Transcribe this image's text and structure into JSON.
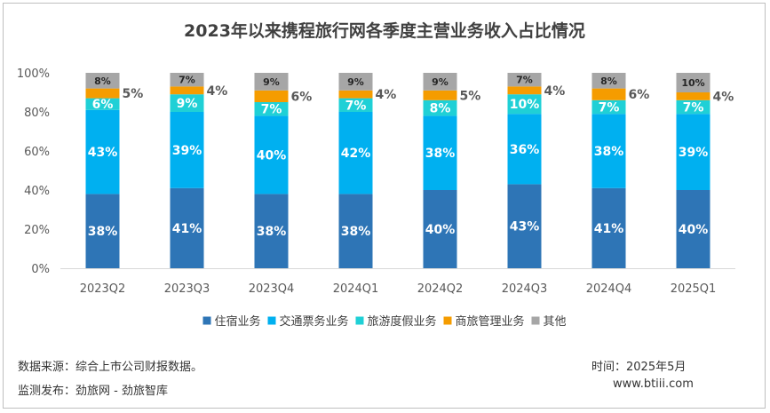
{
  "chart_data": {
    "type": "bar",
    "stacked": true,
    "title": "2023年以来携程旅行网各季度主营业务收入占比情况",
    "categories": [
      "2023Q2",
      "2023Q3",
      "2023Q4",
      "2024Q1",
      "2024Q2",
      "2024Q3",
      "2024Q4",
      "2025Q1"
    ],
    "y_ticks": [
      "0%",
      "20%",
      "40%",
      "60%",
      "80%",
      "100%"
    ],
    "ylim": [
      0,
      100
    ],
    "grid": false,
    "legend_position": "bottom",
    "series": [
      {
        "name": "住宿业务",
        "color": "#2e75b6",
        "values": [
          38,
          41,
          38,
          38,
          40,
          43,
          41,
          40
        ],
        "labels": [
          "38%",
          "41%",
          "38%",
          "38%",
          "40%",
          "43%",
          "41%",
          "40%"
        ]
      },
      {
        "name": "交通票务业务",
        "color": "#00b0f0",
        "values": [
          43,
          39,
          40,
          42,
          38,
          36,
          38,
          39
        ],
        "labels": [
          "43%",
          "39%",
          "40%",
          "42%",
          "38%",
          "36%",
          "38%",
          "39%"
        ]
      },
      {
        "name": "旅游度假业务",
        "color": "#1fd0d6",
        "values": [
          6,
          9,
          7,
          7,
          8,
          10,
          7,
          7
        ],
        "labels": [
          "6%",
          "9%",
          "7%",
          "7%",
          "8%",
          "10%",
          "7%",
          "7%"
        ]
      },
      {
        "name": "商旅管理业务",
        "color": "#f59c00",
        "values": [
          5,
          4,
          6,
          4,
          5,
          4,
          6,
          4
        ],
        "labels": [
          "5%",
          "4%",
          "6%",
          "4%",
          "5%",
          "4%",
          "6%",
          "4%"
        ]
      },
      {
        "name": "其他",
        "color": "#a6a6a6",
        "values": [
          8,
          7,
          9,
          9,
          9,
          7,
          8,
          10
        ],
        "labels": [
          "8%",
          "7%",
          "9%",
          "9%",
          "9%",
          "7%",
          "8%",
          "10%"
        ]
      }
    ]
  },
  "footer": {
    "source": "数据来源：综合上市公司财报数据。",
    "monitor": "监测发布：劲旅网 - 劲旅智库",
    "time": "时间：2025年5月",
    "website": "www.btiii.com"
  }
}
